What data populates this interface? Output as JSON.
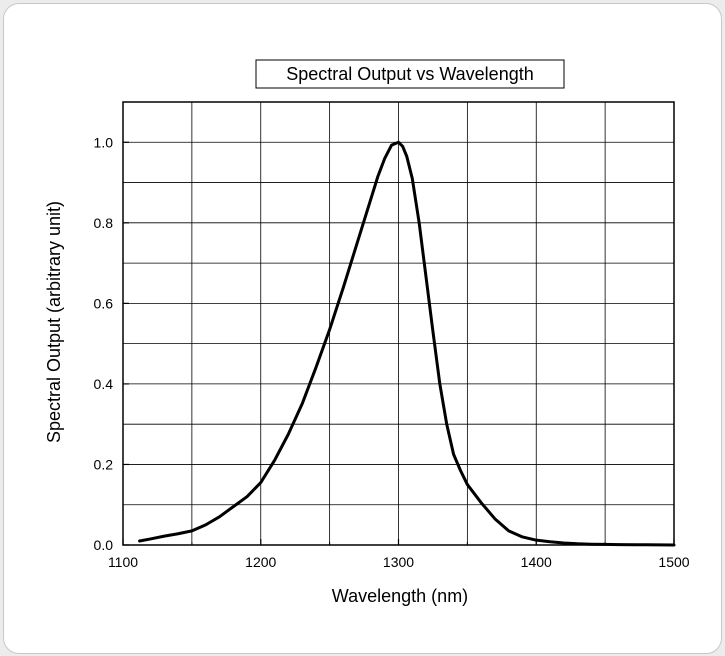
{
  "chart_data": {
    "type": "line",
    "title": "Spectral Output vs Wavelength",
    "xlabel": "Wavelength (nm)",
    "ylabel": "Spectral Output (arbitrary unit)",
    "xlim": [
      1100,
      1500
    ],
    "ylim": [
      0,
      1.1
    ],
    "xticks": [
      1100,
      1200,
      1300,
      1400,
      1500
    ],
    "yticks": [
      0.0,
      0.2,
      0.4,
      0.6,
      0.8,
      1.0
    ],
    "xtick_labels": [
      "1100",
      "1200",
      "1300",
      "1400",
      "1500"
    ],
    "ytick_labels": [
      "0.0",
      "0.2",
      "0.4",
      "0.6",
      "0.8",
      "1.0"
    ],
    "grid": true,
    "line_color": "#000000",
    "series": [
      {
        "x": [
          1112,
          1120,
          1130,
          1140,
          1150,
          1160,
          1170,
          1180,
          1190,
          1200,
          1210,
          1220,
          1230,
          1240,
          1250,
          1260,
          1270,
          1280,
          1285,
          1290,
          1295,
          1300,
          1303,
          1306,
          1310,
          1315,
          1320,
          1325,
          1330,
          1335,
          1340,
          1345,
          1350,
          1360,
          1370,
          1380,
          1390,
          1400,
          1410,
          1420,
          1430,
          1440,
          1450,
          1460,
          1480,
          1500
        ],
        "y": [
          0.01,
          0.015,
          0.022,
          0.028,
          0.035,
          0.05,
          0.07,
          0.095,
          0.12,
          0.155,
          0.21,
          0.275,
          0.35,
          0.44,
          0.535,
          0.64,
          0.75,
          0.86,
          0.915,
          0.96,
          0.993,
          1.0,
          0.99,
          0.965,
          0.91,
          0.8,
          0.665,
          0.53,
          0.4,
          0.3,
          0.225,
          0.185,
          0.15,
          0.105,
          0.065,
          0.035,
          0.02,
          0.012,
          0.008,
          0.005,
          0.003,
          0.002,
          0.0015,
          0.001,
          0.0005,
          0.0
        ]
      }
    ]
  }
}
